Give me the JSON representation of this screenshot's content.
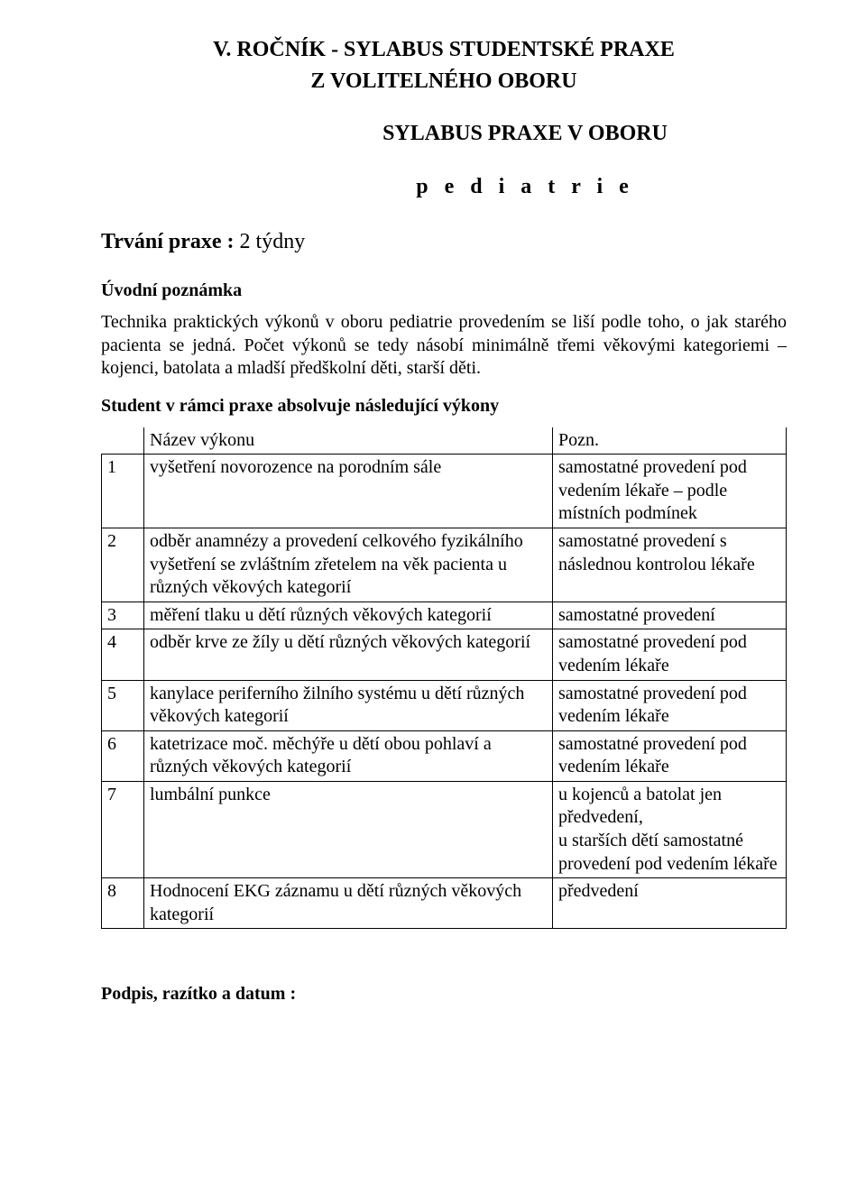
{
  "title_line1": "V. ROČNÍK  - SYLABUS STUDENTSKÉ PRAXE",
  "title_line2": "Z VOLITELNÉHO OBORU",
  "sub_line1": "SYLABUS PRAXE V OBORU",
  "sub_line2": "p e d i a t r i e",
  "duration_label": "Trvání praxe :",
  "duration_value": "  2  týdny",
  "intro_heading": "Úvodní poznámka",
  "intro_text": "Technika praktických výkonů v oboru pediatrie provedením se liší podle toho, o jak starého pacienta se jedná. Počet výkonů se tedy násobí minimálně třemi věkovými kategoriemi – kojenci, batolata a mladší předškolní děti, starší děti.",
  "table_heading": "Student v rámci praxe absolvuje následující výkony",
  "header": {
    "col_name": "Název výkonu",
    "col_note": "Pozn."
  },
  "rows": [
    {
      "n": "1",
      "name": "vyšetření novorozence na porodním sále",
      "note": "samostatné provedení pod vedením lékaře – podle místních podmínek"
    },
    {
      "n": "2",
      "name": "odběr anamnézy a provedení celkového fyzikálního vyšetření se zvláštním zřetelem na věk pacienta u různých věkových kategorií",
      "note": "samostatné provedení s následnou kontrolou lékaře"
    },
    {
      "n": "3",
      "name": "měření tlaku u dětí různých věkových kategorií",
      "note": "samostatné provedení"
    },
    {
      "n": "4",
      "name": "odběr krve ze žíly u dětí různých věkových kategorií",
      "note": "samostatné provedení pod vedením lékaře"
    },
    {
      "n": "5",
      "name": "kanylace periferního žilního systému u dětí různých věkových kategorií",
      "note": "samostatné provedení pod vedením lékaře"
    },
    {
      "n": "6",
      "name": "katetrizace moč. měchýře u dětí obou pohlaví a různých věkových kategorií",
      "note": "samostatné provedení pod vedením lékaře"
    },
    {
      "n": "7",
      "name": "lumbální punkce",
      "note": "u kojenců a batolat jen předvedení,\nu starších dětí samostatné provedení pod vedením lékaře"
    },
    {
      "n": "8",
      "name": "Hodnocení EKG záznamu u dětí různých věkových kategorií",
      "note": "předvedení"
    }
  ],
  "footer": "Podpis, razítko a datum :"
}
